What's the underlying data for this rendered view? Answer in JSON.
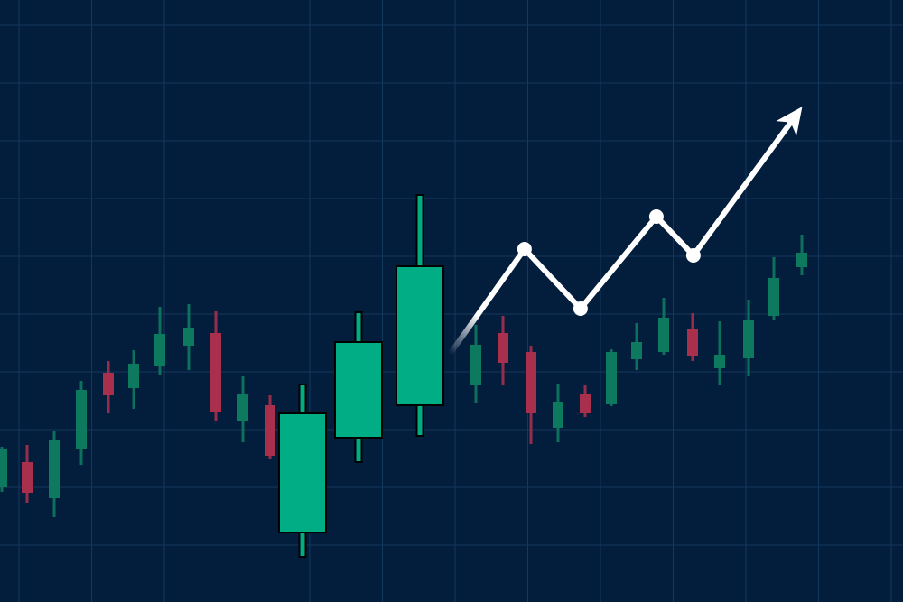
{
  "chart_data": {
    "type": "candlestick",
    "title": "",
    "xlabel": "",
    "ylabel": "",
    "grid": true,
    "ylim": [
      0,
      66.7
    ],
    "colors": {
      "background": "#031d3c",
      "grid": "#14375c",
      "up": "#0d7a5f",
      "down": "#a8304d",
      "highlight_up": "#00ad84",
      "trend": "#ffffff"
    },
    "candles": [
      {
        "t": 1,
        "o": 12.7,
        "h": 17.2,
        "l": 12.2,
        "c": 16.9
      },
      {
        "t": 2,
        "o": 15.5,
        "h": 17.4,
        "l": 11.0,
        "c": 12.1
      },
      {
        "t": 3,
        "o": 11.5,
        "h": 18.9,
        "l": 9.4,
        "c": 17.9
      },
      {
        "t": 4,
        "o": 16.9,
        "h": 24.5,
        "l": 15.2,
        "c": 23.5
      },
      {
        "t": 5,
        "o": 25.4,
        "h": 26.7,
        "l": 20.9,
        "c": 22.9
      },
      {
        "t": 6,
        "o": 23.7,
        "h": 27.9,
        "l": 21.4,
        "c": 26.4
      },
      {
        "t": 7,
        "o": 26.2,
        "h": 32.7,
        "l": 25.1,
        "c": 29.7
      },
      {
        "t": 8,
        "o": 28.4,
        "h": 33.0,
        "l": 25.7,
        "c": 30.4
      },
      {
        "t": 9,
        "o": 29.8,
        "h": 32.2,
        "l": 20.0,
        "c": 21.0
      },
      {
        "t": 10,
        "o": 20.0,
        "h": 25.0,
        "l": 17.7,
        "c": 23.0
      },
      {
        "t": 11,
        "o": 21.8,
        "h": 22.9,
        "l": 15.8,
        "c": 16.2
      },
      {
        "t": 12,
        "o": 7.7,
        "h": 24.1,
        "l": 5.0,
        "c": 20.9,
        "highlight": true
      },
      {
        "t": 13,
        "o": 18.2,
        "h": 32.1,
        "l": 15.5,
        "c": 28.8,
        "highlight": true
      },
      {
        "t": 14,
        "o": 21.8,
        "h": 45.1,
        "l": 18.4,
        "c": 37.2,
        "highlight": true
      },
      {
        "t": 15,
        "o": 24.0,
        "h": 30.7,
        "l": 22.0,
        "c": 28.5
      },
      {
        "t": 16,
        "o": 29.8,
        "h": 31.7,
        "l": 24.0,
        "c": 26.5
      },
      {
        "t": 17,
        "o": 27.7,
        "h": 28.4,
        "l": 17.5,
        "c": 20.9
      },
      {
        "t": 18,
        "o": 19.3,
        "h": 24.2,
        "l": 17.7,
        "c": 22.2
      },
      {
        "t": 19,
        "o": 23.0,
        "h": 24.0,
        "l": 20.5,
        "c": 20.9
      },
      {
        "t": 20,
        "o": 21.9,
        "h": 28.0,
        "l": 21.7,
        "c": 27.7
      },
      {
        "t": 21,
        "o": 26.9,
        "h": 30.9,
        "l": 25.7,
        "c": 28.8
      },
      {
        "t": 22,
        "o": 27.7,
        "h": 33.7,
        "l": 27.4,
        "c": 31.5
      },
      {
        "t": 23,
        "o": 30.2,
        "h": 32.0,
        "l": 26.7,
        "c": 27.3
      },
      {
        "t": 24,
        "o": 25.9,
        "h": 31.1,
        "l": 24.0,
        "c": 27.4
      },
      {
        "t": 25,
        "o": 27.0,
        "h": 33.5,
        "l": 25.0,
        "c": 31.3
      },
      {
        "t": 26,
        "o": 31.7,
        "h": 38.2,
        "l": 31.2,
        "c": 35.9
      },
      {
        "t": 27,
        "o": 37.1,
        "h": 40.7,
        "l": 36.2,
        "c": 38.7
      }
    ],
    "trend_line": [
      {
        "t": 14.56,
        "p": 27.7
      },
      {
        "t": 16.77,
        "p": 39.1
      },
      {
        "t": 18.83,
        "p": 32.5
      },
      {
        "t": 21.73,
        "p": 42.7
      },
      {
        "t": 23.03,
        "p": 38.4
      },
      {
        "t": 26.9,
        "p": 54.4
      }
    ],
    "trend_arrow": true
  }
}
